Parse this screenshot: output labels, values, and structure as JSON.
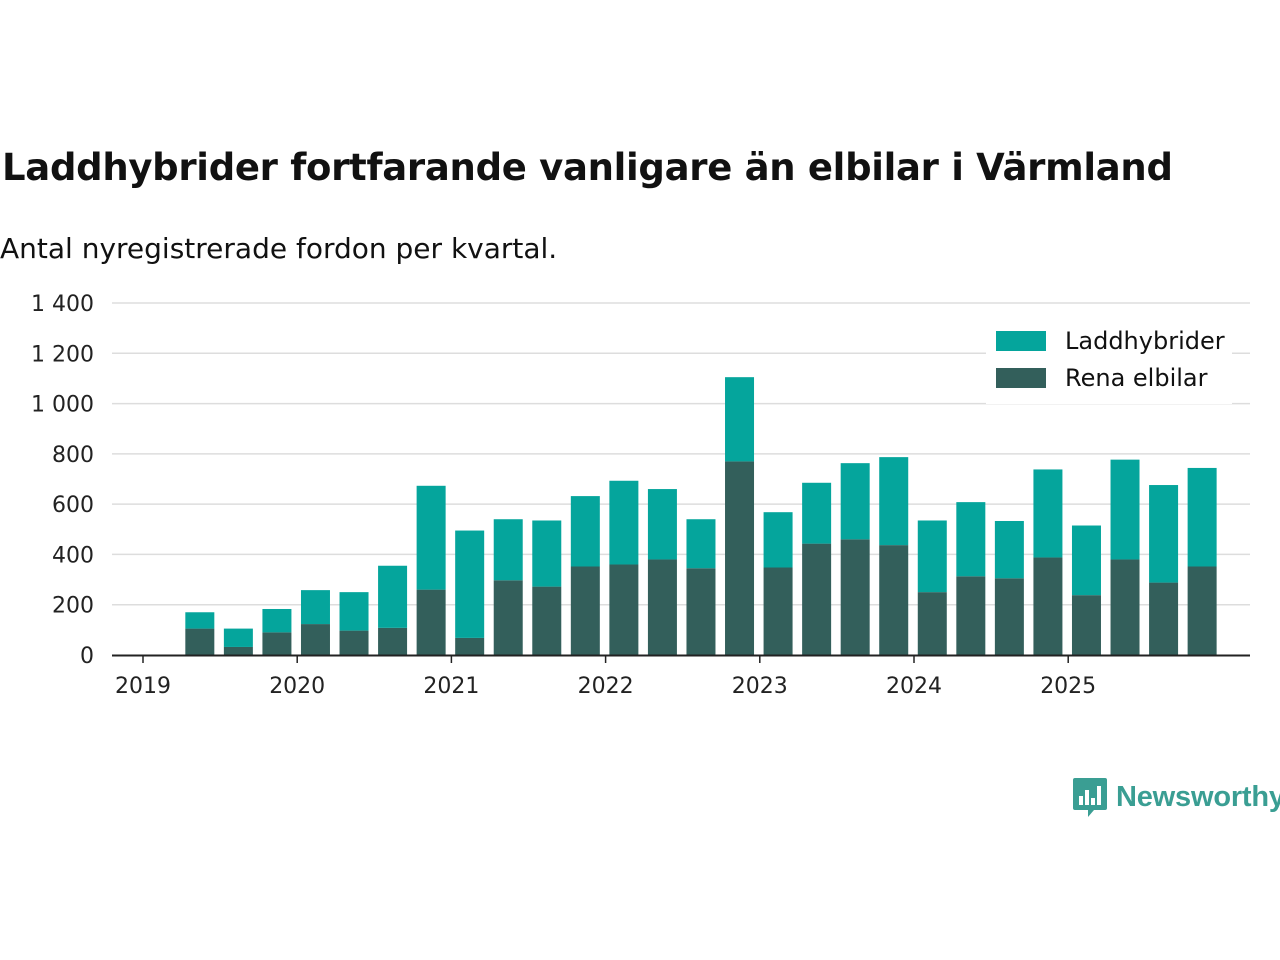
{
  "title": "Laddhybrider fortfarande vanligare än elbilar i Värmland",
  "subtitle": "Antal nyregistrerade fordon per kvartal.",
  "brand": {
    "name": "Newsworthy",
    "icon": "newsworthy-logo-icon"
  },
  "colors": {
    "laddhybrider": "#05a59c",
    "rena_elbilar": "#335f5b",
    "grid": "#dddddd",
    "axis": "#222222"
  },
  "chart_data": {
    "type": "bar",
    "stacked": true,
    "title": "Laddhybrider fortfarande vanligare än elbilar i Värmland",
    "subtitle": "Antal nyregistrerade fordon per kvartal.",
    "xlabel": "",
    "ylabel": "",
    "ylim": [
      0,
      1400
    ],
    "yticks": [
      0,
      200,
      400,
      600,
      800,
      1000,
      1200,
      1400
    ],
    "ytick_labels": [
      "0",
      "200",
      "400",
      "600",
      "800",
      "1 000",
      "1 200",
      "1 400"
    ],
    "x_tick_labels": [
      "2019",
      "2020",
      "2021",
      "2022",
      "2023",
      "2024",
      "2025"
    ],
    "grid": true,
    "legend_position": "top-right",
    "categories": [
      "2019 K2",
      "2019 K3",
      "2019 K4",
      "2020 K1",
      "2020 K2",
      "2020 K3",
      "2020 K4",
      "2021 K1",
      "2021 K2",
      "2021 K3",
      "2021 K4",
      "2022 K1",
      "2022 K2",
      "2022 K3",
      "2022 K4",
      "2023 K1",
      "2023 K2",
      "2023 K3",
      "2023 K4",
      "2024 K1",
      "2024 K2",
      "2024 K3",
      "2024 K4",
      "2025 K1",
      "2025 K2",
      "2025 K3",
      "2025 K4"
    ],
    "series": [
      {
        "name": "Rena elbilar",
        "values": [
          105,
          32,
          90,
          123,
          97,
          108,
          260,
          68,
          297,
          272,
          352,
          360,
          380,
          345,
          770,
          348,
          443,
          460,
          437,
          250,
          313,
          305,
          388,
          238,
          380,
          288,
          352
        ]
      },
      {
        "name": "Laddhybrider",
        "values": [
          65,
          73,
          93,
          135,
          153,
          247,
          413,
          427,
          243,
          263,
          280,
          333,
          280,
          195,
          335,
          220,
          242,
          303,
          350,
          285,
          295,
          228,
          350,
          277,
          397,
          388,
          392
        ]
      }
    ]
  }
}
